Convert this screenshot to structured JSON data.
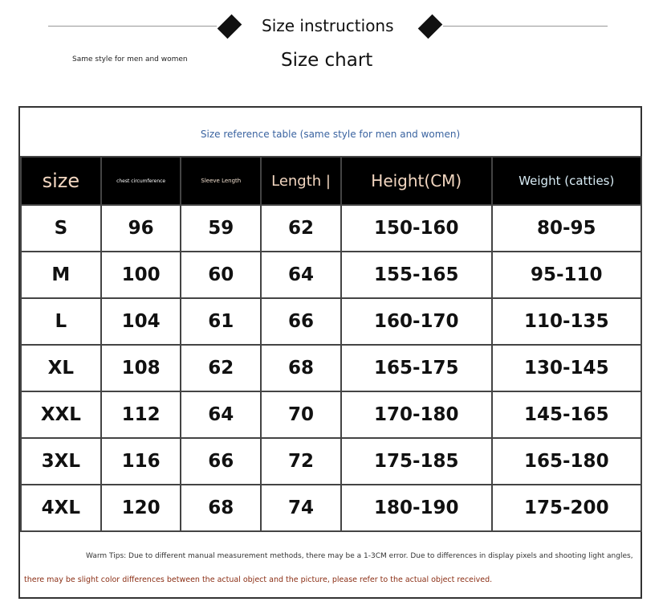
{
  "header": {
    "title": "Size instructions",
    "subtitle": "Size chart",
    "note": "Same style for men and women"
  },
  "table": {
    "caption": "Size reference table (same style for men and women)",
    "columns": [
      "size",
      "chest circumference",
      "Sleeve Length",
      "Length |",
      "Height(CM)",
      "Weight (catties)"
    ],
    "rows": [
      [
        "S",
        "96",
        "59",
        "62",
        "150-160",
        "80-95"
      ],
      [
        "M",
        "100",
        "60",
        "64",
        "155-165",
        "95-110"
      ],
      [
        "L",
        "104",
        "61",
        "66",
        "160-170",
        "110-135"
      ],
      [
        "XL",
        "108",
        "62",
        "68",
        "165-175",
        "130-145"
      ],
      [
        "XXL",
        "112",
        "64",
        "70",
        "170-180",
        "145-165"
      ],
      [
        "3XL",
        "116",
        "66",
        "72",
        "175-185",
        "165-180"
      ],
      [
        "4XL",
        "120",
        "68",
        "74",
        "180-190",
        "175-200"
      ]
    ]
  },
  "footer": {
    "tip_line1": "Warm Tips: Due to different manual measurement methods, there may be a 1-3CM error. Due to differences in display pixels and shooting light angles,",
    "tip_line2": "there may be slight color differences between the actual object and the picture, please refer to the actual object received."
  },
  "colors": {
    "caption": "#3a63a0",
    "header_peach": "#f2d6c0",
    "header_blue": "#d8ecf5",
    "warning": "#8b2e14"
  }
}
